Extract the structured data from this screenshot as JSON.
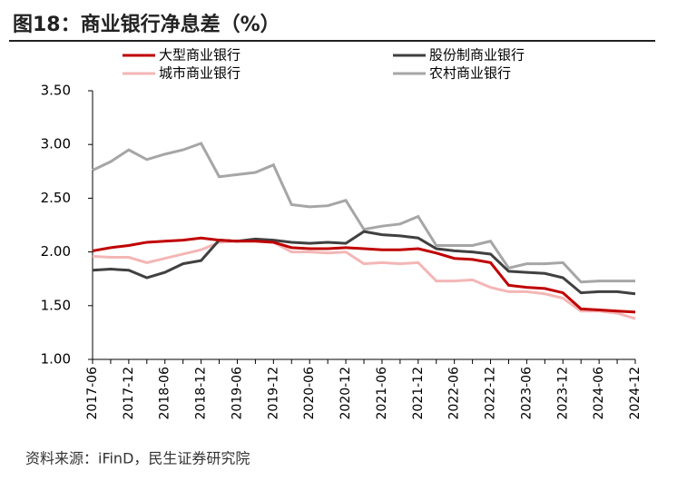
{
  "chart_data": {
    "type": "line",
    "title": "图18：商业银行净息差（%）",
    "source": "资料来源：iFinD，民生证券研究院",
    "categories": [
      "2017-06",
      null,
      "2017-12",
      null,
      "2018-06",
      null,
      "2018-12",
      null,
      "2019-06",
      null,
      "2019-12",
      null,
      "2020-06",
      null,
      "2020-12",
      null,
      "2021-06",
      null,
      "2021-12",
      null,
      "2022-06",
      null,
      "2022-12",
      null,
      "2023-06",
      null,
      "2023-12",
      null,
      "2024-06",
      null,
      "2024-12"
    ],
    "series": [
      {
        "name": "大型商业银行",
        "color": "#c00000",
        "values": [
          2.01,
          2.04,
          2.06,
          2.09,
          2.1,
          2.11,
          2.13,
          2.11,
          2.1,
          2.1,
          2.09,
          2.04,
          2.03,
          2.03,
          2.04,
          2.03,
          2.02,
          2.02,
          2.03,
          1.99,
          1.94,
          1.93,
          1.9,
          1.69,
          1.67,
          1.66,
          1.62,
          1.47,
          1.46,
          1.45,
          1.44
        ]
      },
      {
        "name": "股份制商业银行",
        "color": "#404040",
        "values": [
          1.83,
          1.84,
          1.83,
          1.76,
          1.81,
          1.89,
          1.92,
          2.11,
          2.1,
          2.12,
          2.11,
          2.09,
          2.08,
          2.09,
          2.08,
          2.19,
          2.16,
          2.15,
          2.13,
          2.03,
          2.01,
          2.0,
          1.98,
          1.82,
          1.81,
          1.8,
          1.76,
          1.62,
          1.63,
          1.63,
          1.61
        ]
      },
      {
        "name": "城市商业银行",
        "color": "#f4b6b6",
        "values": [
          1.96,
          1.95,
          1.95,
          1.9,
          1.94,
          1.98,
          2.02,
          2.09,
          2.1,
          2.11,
          2.09,
          2.0,
          2.0,
          1.99,
          2.0,
          1.89,
          1.9,
          1.89,
          1.9,
          1.73,
          1.73,
          1.74,
          1.67,
          1.63,
          1.63,
          1.61,
          1.57,
          1.45,
          1.45,
          1.43,
          1.38
        ]
      },
      {
        "name": "农村商业银行",
        "color": "#a6a6a6",
        "values": [
          2.76,
          2.84,
          2.95,
          2.86,
          2.91,
          2.95,
          3.01,
          2.7,
          2.72,
          2.74,
          2.81,
          2.44,
          2.42,
          2.43,
          2.48,
          2.21,
          2.24,
          2.26,
          2.33,
          2.06,
          2.06,
          2.06,
          2.1,
          1.85,
          1.89,
          1.89,
          1.9,
          1.72,
          1.73,
          1.73,
          1.73
        ]
      }
    ],
    "ylim": [
      1.0,
      3.5
    ],
    "yticks": [
      {
        "value": 1.0,
        "label": "1.00"
      },
      {
        "value": 1.5,
        "label": "1.50"
      },
      {
        "value": 2.0,
        "label": "2.00"
      },
      {
        "value": 2.5,
        "label": "2.50"
      },
      {
        "value": 3.0,
        "label": "3.00"
      },
      {
        "value": 3.5,
        "label": "3.50"
      }
    ]
  }
}
